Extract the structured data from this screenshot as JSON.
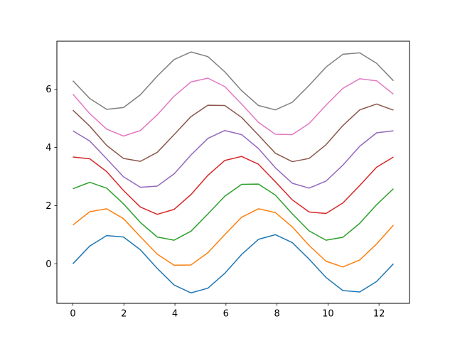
{
  "chart_data": {
    "type": "line",
    "title": "",
    "xlabel": "",
    "ylabel": "",
    "xlim": [
      -0.628,
      13.195
    ],
    "ylim": [
      -1.36,
      7.65
    ],
    "xticks": [
      0,
      2,
      4,
      6,
      8,
      10,
      12
    ],
    "yticks": [
      0,
      2,
      4,
      6
    ],
    "x": [
      0,
      0.661,
      1.323,
      1.984,
      2.646,
      3.307,
      3.968,
      4.63,
      5.291,
      5.952,
      6.614,
      7.275,
      7.937,
      8.598,
      9.259,
      9.921,
      10.582,
      11.244,
      11.905,
      12.566
    ],
    "series": [
      {
        "color": "#1f77b4",
        "values": [
          0.0,
          0.61,
          0.97,
          0.92,
          0.48,
          -0.16,
          -0.73,
          -1.0,
          -0.84,
          -0.33,
          0.32,
          0.84,
          1.0,
          0.73,
          0.16,
          -0.47,
          -0.92,
          -0.97,
          -0.61,
          0.0
        ]
      },
      {
        "color": "#ff7f0e",
        "values": [
          1.33,
          1.79,
          1.89,
          1.55,
          0.93,
          0.33,
          -0.05,
          -0.04,
          0.38,
          1.0,
          1.6,
          1.89,
          1.76,
          1.27,
          0.63,
          0.09,
          -0.11,
          0.13,
          0.68,
          1.33
        ]
      },
      {
        "color": "#2ca02c",
        "values": [
          2.58,
          2.8,
          2.6,
          2.06,
          1.42,
          0.92,
          0.81,
          1.12,
          1.71,
          2.32,
          2.73,
          2.74,
          2.36,
          1.72,
          1.13,
          0.81,
          0.91,
          1.39,
          2.03,
          2.58
        ]
      },
      {
        "color": "#d62728",
        "values": [
          3.67,
          3.61,
          3.17,
          2.52,
          1.95,
          1.7,
          1.87,
          2.38,
          3.04,
          3.55,
          3.69,
          3.42,
          2.82,
          2.2,
          1.78,
          1.73,
          2.09,
          2.69,
          3.32,
          3.67
        ]
      },
      {
        "color": "#9467bd",
        "values": [
          4.57,
          4.22,
          3.61,
          2.99,
          2.63,
          2.67,
          3.09,
          3.74,
          4.31,
          4.58,
          4.44,
          3.96,
          3.3,
          2.77,
          2.6,
          2.84,
          3.39,
          4.04,
          4.5,
          4.57
        ]
      },
      {
        "color": "#8c564b",
        "values": [
          5.28,
          4.73,
          4.07,
          3.62,
          3.52,
          3.83,
          4.44,
          5.06,
          5.45,
          5.44,
          5.03,
          4.42,
          3.8,
          3.51,
          3.62,
          4.09,
          4.75,
          5.29,
          5.49,
          5.28
        ]
      },
      {
        "color": "#e377c2",
        "values": [
          5.83,
          5.16,
          4.63,
          4.39,
          4.58,
          5.12,
          5.76,
          6.25,
          6.38,
          6.09,
          5.49,
          4.86,
          4.45,
          4.44,
          4.82,
          5.45,
          6.03,
          6.36,
          6.29,
          5.83
        ]
      },
      {
        "color": "#7f7f7f",
        "values": [
          6.29,
          5.68,
          5.31,
          5.37,
          5.81,
          6.45,
          7.02,
          7.28,
          7.12,
          6.6,
          5.95,
          5.44,
          5.29,
          5.55,
          6.13,
          6.76,
          7.2,
          7.25,
          6.89,
          6.29
        ]
      }
    ]
  }
}
